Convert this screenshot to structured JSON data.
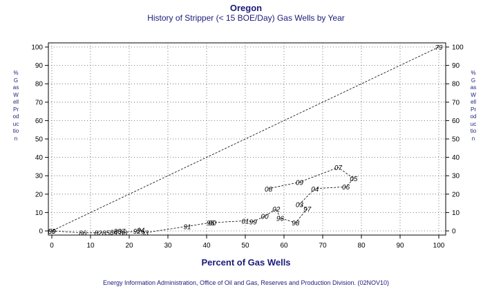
{
  "titles": {
    "title": "Oregon",
    "subtitle": "History of Stripper (< 15 BOE/Day) Gas Wells by Year"
  },
  "footer": "Energy Information Administration, Office of Oil and Gas, Reserves and Production Division. (02NOV10)",
  "chart_data": {
    "type": "line",
    "title": "Oregon",
    "subtitle": "History of Stripper (< 15 BOE/Day) Gas Wells by Year",
    "xlabel": "Percent of Gas Wells",
    "ylabel": "% Gas Well Production",
    "xlim": [
      0,
      100
    ],
    "ylim": [
      0,
      100
    ],
    "xticks": [
      0,
      10,
      20,
      30,
      40,
      50,
      60,
      70,
      80,
      90,
      100
    ],
    "yticks": [
      0,
      10,
      20,
      30,
      40,
      50,
      60,
      70,
      80,
      90,
      100
    ],
    "grid": true,
    "line_style": "dashed",
    "series": [
      {
        "points": [
          {
            "label": "79",
            "x": 100,
            "y": 100
          },
          {
            "label": "80",
            "x": 0,
            "y": 0
          },
          {
            "label": "89",
            "x": 0,
            "y": 0
          },
          {
            "label": "86",
            "x": 8,
            "y": -1
          },
          {
            "label": "82",
            "x": 12,
            "y": -1
          },
          {
            "label": "85",
            "x": 14,
            "y": -1
          },
          {
            "label": "84",
            "x": 16,
            "y": -0.5
          },
          {
            "label": "83",
            "x": 17,
            "y": 0
          },
          {
            "label": "87",
            "x": 18,
            "y": 0
          },
          {
            "label": "88",
            "x": 18.5,
            "y": -1
          },
          {
            "label": "92",
            "x": 22,
            "y": 0
          },
          {
            "label": "94",
            "x": 23,
            "y": 0.5
          },
          {
            "label": "93",
            "x": 24,
            "y": -1
          },
          {
            "label": "91",
            "x": 35,
            "y": 2.5
          },
          {
            "label": "95",
            "x": 41,
            "y": 4.5
          },
          {
            "label": "90",
            "x": 41.5,
            "y": 4.5
          },
          {
            "label": "01",
            "x": 50,
            "y": 5.5
          },
          {
            "label": "99",
            "x": 52,
            "y": 5
          },
          {
            "label": "00",
            "x": 55,
            "y": 8
          },
          {
            "label": "02",
            "x": 58,
            "y": 12
          },
          {
            "label": "96",
            "x": 59,
            "y": 7
          },
          {
            "label": "98",
            "x": 63,
            "y": 4.5
          },
          {
            "label": "97",
            "x": 66,
            "y": 12
          },
          {
            "label": "03",
            "x": 64,
            "y": 14.5
          },
          {
            "label": "04",
            "x": 68,
            "y": 23
          },
          {
            "label": "06",
            "x": 76,
            "y": 24
          },
          {
            "label": "05",
            "x": 78,
            "y": 28.5
          },
          {
            "label": "07",
            "x": 74,
            "y": 34.5
          },
          {
            "label": "09",
            "x": 64,
            "y": 26.5
          },
          {
            "label": "08",
            "x": 56,
            "y": 23
          }
        ]
      }
    ]
  }
}
